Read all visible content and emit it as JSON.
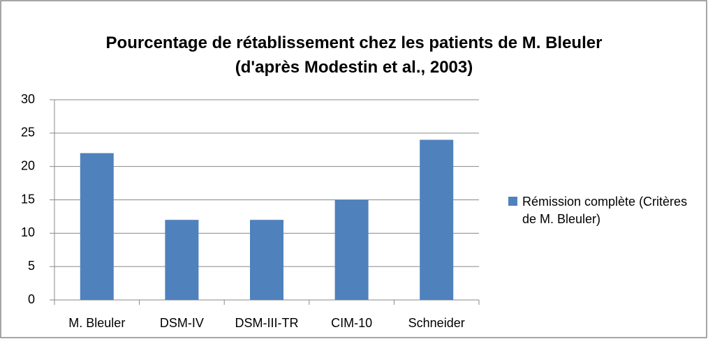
{
  "chart_data": {
    "type": "bar",
    "title": "Pourcentage de rétablissement chez les patients de M. Bleuler (d'après Modestin et al., 2003)",
    "categories": [
      "M. Bleuler",
      "DSM-IV",
      "DSM-III-TR",
      "CIM-10",
      "Schneider"
    ],
    "series": [
      {
        "name": "Rémission complète (Critères de M. Bleuler)",
        "color": "#4f81bd",
        "values": [
          22,
          12,
          12,
          15,
          24
        ]
      }
    ],
    "ylim": [
      0,
      30
    ],
    "yticks": [
      0,
      5,
      10,
      15,
      20,
      25,
      30
    ],
    "grid": true,
    "legend": "right"
  }
}
